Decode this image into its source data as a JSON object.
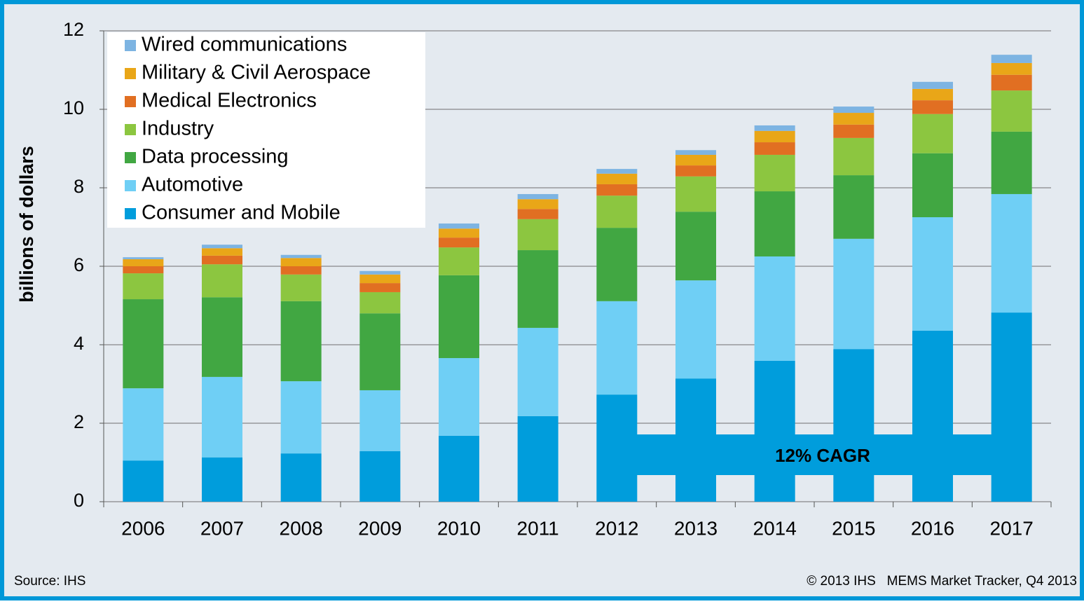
{
  "chart_data": {
    "type": "stacked_bar",
    "y_label": "billions of dollars",
    "categories": [
      "2006",
      "2007",
      "2008",
      "2009",
      "2010",
      "2011",
      "2012",
      "2013",
      "2014",
      "2015",
      "2016",
      "2017"
    ],
    "series": [
      {
        "name": "Consumer and Mobile",
        "color": "#009ddc",
        "values": [
          1.05,
          1.13,
          1.23,
          1.29,
          1.68,
          2.18,
          2.73,
          3.14,
          3.59,
          3.89,
          4.36,
          4.82
        ]
      },
      {
        "name": "Automotive",
        "color": "#6fcff5",
        "values": [
          1.84,
          2.05,
          1.84,
          1.55,
          1.98,
          2.25,
          2.38,
          2.5,
          2.66,
          2.81,
          2.89,
          3.02
        ]
      },
      {
        "name": "Data processing",
        "color": "#41a742",
        "values": [
          2.27,
          2.03,
          2.04,
          1.96,
          2.11,
          1.98,
          1.87,
          1.75,
          1.66,
          1.62,
          1.63,
          1.59
        ]
      },
      {
        "name": "Industry",
        "color": "#8cc640",
        "values": [
          0.66,
          0.84,
          0.68,
          0.54,
          0.71,
          0.79,
          0.82,
          0.9,
          0.93,
          0.95,
          1.0,
          1.05
        ]
      },
      {
        "name": "Medical Electronics",
        "color": "#e16f22",
        "values": [
          0.18,
          0.22,
          0.21,
          0.23,
          0.25,
          0.26,
          0.29,
          0.28,
          0.32,
          0.34,
          0.35,
          0.4
        ]
      },
      {
        "name": "Military & Civil Aerospace",
        "color": "#e9a618",
        "values": [
          0.18,
          0.19,
          0.21,
          0.22,
          0.23,
          0.25,
          0.27,
          0.27,
          0.29,
          0.3,
          0.29,
          0.3
        ]
      },
      {
        "name": "Wired communications",
        "color": "#7db4e2",
        "values": [
          0.05,
          0.09,
          0.08,
          0.09,
          0.13,
          0.13,
          0.12,
          0.12,
          0.14,
          0.16,
          0.18,
          0.21
        ]
      }
    ],
    "ylim": [
      0,
      12
    ],
    "yticks": [
      0,
      2,
      4,
      6,
      8,
      10,
      12
    ],
    "grid": true,
    "legend": "top-left",
    "annotation": "12% CAGR",
    "source": "Source: IHS",
    "credit": "© 2013 IHS   MEMS Market Tracker, Q4 2013"
  }
}
